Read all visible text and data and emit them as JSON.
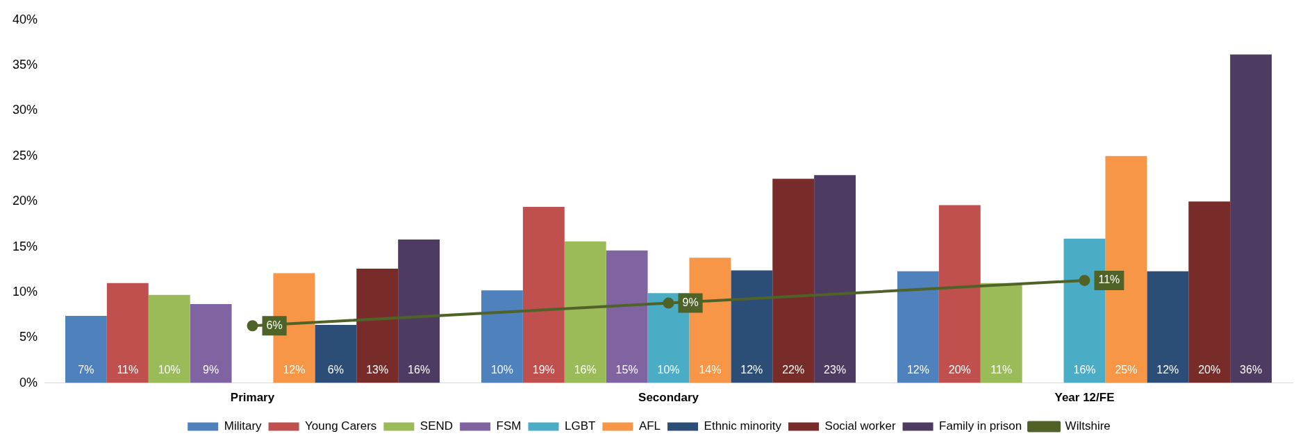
{
  "chart_data": {
    "type": "bar",
    "categories": [
      "Primary",
      "Secondary",
      "Year 12/FE"
    ],
    "ylim": [
      0,
      40
    ],
    "yticks": [
      {
        "value": 0,
        "label": "0%"
      },
      {
        "value": 5,
        "label": "5%"
      },
      {
        "value": 10,
        "label": "10%"
      },
      {
        "value": 15,
        "label": "15%"
      },
      {
        "value": 20,
        "label": "20%"
      },
      {
        "value": 25,
        "label": "25%"
      },
      {
        "value": 30,
        "label": "30%"
      },
      {
        "value": 35,
        "label": "35%"
      },
      {
        "value": 40,
        "label": "40%"
      }
    ],
    "grid": false,
    "legend": "bottom",
    "series": [
      {
        "name": "Military",
        "color": "#4f81bd",
        "values": [
          7.4,
          10.2,
          12.3
        ],
        "value_labels": [
          "7%",
          "10%",
          "12%"
        ]
      },
      {
        "name": "Young Carers",
        "color": "#c0504d",
        "values": [
          11.0,
          19.4,
          19.6
        ],
        "value_labels": [
          "11%",
          "19%",
          "20%"
        ]
      },
      {
        "name": "SEND",
        "color": "#9bbb59",
        "values": [
          9.7,
          15.6,
          11.0
        ],
        "value_labels": [
          "10%",
          "16%",
          "11%"
        ]
      },
      {
        "name": "FSM",
        "color": "#8064a2",
        "values": [
          8.7,
          14.6,
          null
        ],
        "value_labels": [
          "9%",
          "15%",
          null
        ]
      },
      {
        "name": "LGBT",
        "color": "#4bacc6",
        "values": [
          null,
          9.9,
          15.9
        ],
        "value_labels": [
          null,
          "10%",
          "16%"
        ]
      },
      {
        "name": "AFL",
        "color": "#f79646",
        "values": [
          12.1,
          13.8,
          25.0
        ],
        "value_labels": [
          "12%",
          "14%",
          "25%"
        ]
      },
      {
        "name": "Ethnic minority",
        "color": "#2c4d75",
        "values": [
          6.4,
          12.4,
          12.3
        ],
        "value_labels": [
          "6%",
          "12%",
          "12%"
        ]
      },
      {
        "name": "Social worker",
        "color": "#772c2a",
        "values": [
          12.6,
          22.5,
          20.0
        ],
        "value_labels": [
          "13%",
          "22%",
          "20%"
        ]
      },
      {
        "name": "Family in prison",
        "color": "#4d3b62",
        "values": [
          15.8,
          22.9,
          36.2
        ],
        "value_labels": [
          "16%",
          "23%",
          "36%"
        ]
      },
      {
        "name": "Wiltshire",
        "type": "line",
        "color": "#4f6228",
        "marker": "circle",
        "values": [
          6.3,
          8.8,
          11.3
        ],
        "value_labels": [
          "6%",
          "9%",
          "11%"
        ]
      }
    ]
  }
}
